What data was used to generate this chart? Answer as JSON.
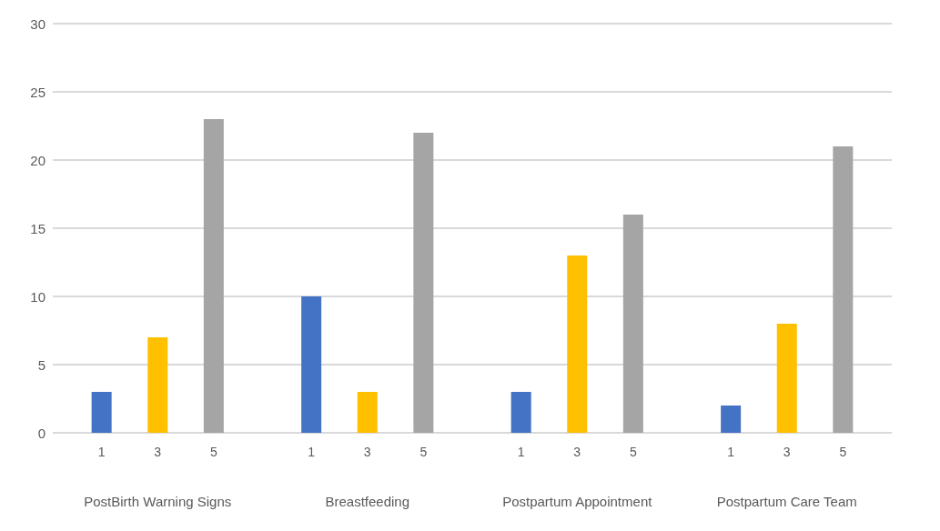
{
  "chart_data": {
    "type": "bar",
    "categories": [
      "PostBirth Warning Signs",
      "Breastfeeding",
      "Postpartum Appointment",
      "Postpartum Care Team"
    ],
    "series": [
      {
        "name": "1",
        "color": "#4472c4",
        "values": [
          3,
          10,
          3,
          2
        ]
      },
      {
        "name": "3",
        "color": "#ffc000",
        "values": [
          7,
          3,
          13,
          8
        ]
      },
      {
        "name": "5",
        "color": "#a5a5a5",
        "values": [
          23,
          22,
          16,
          21
        ]
      }
    ],
    "ylim": [
      0,
      30
    ],
    "yticks": [
      0,
      5,
      10,
      15,
      20,
      25,
      30
    ],
    "grid": "y",
    "legend": false
  }
}
